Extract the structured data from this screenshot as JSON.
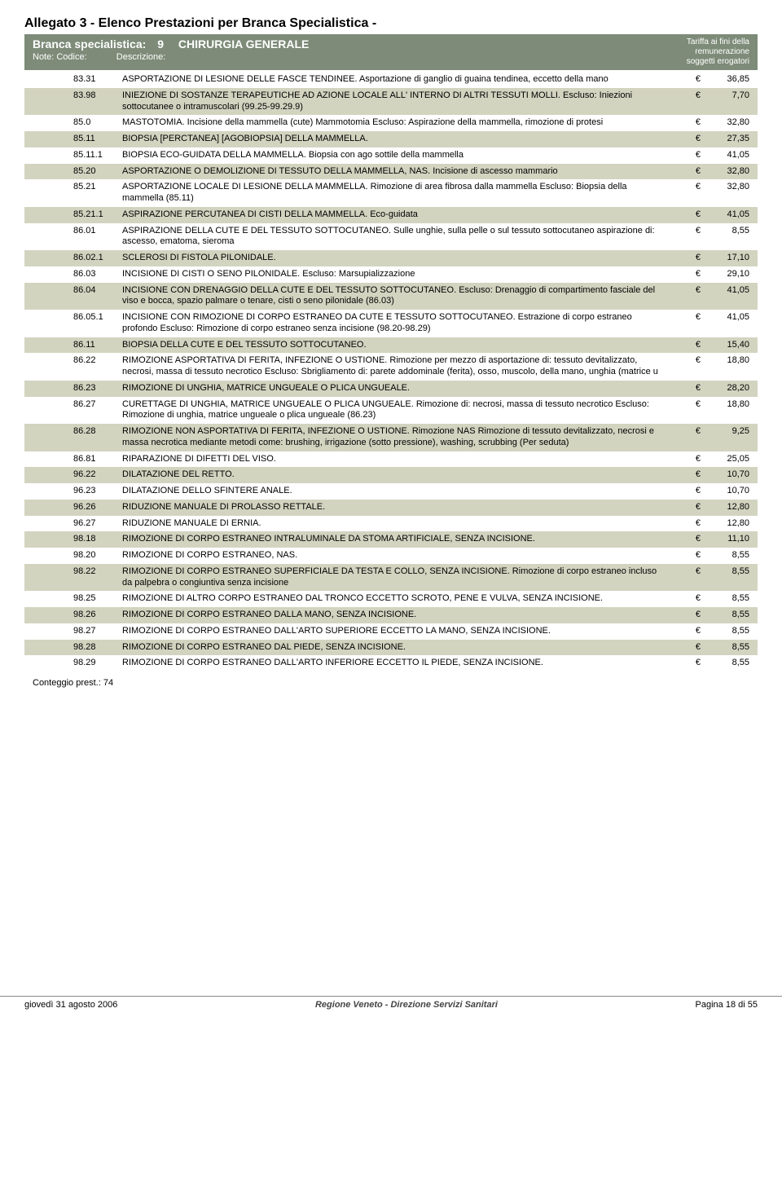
{
  "doc_title": "Allegato 3 - Elenco Prestazioni per Branca Specialistica -",
  "header": {
    "label": "Branca specialistica:",
    "num": "9",
    "name": "CHIRURGIA GENERALE",
    "note_label": "Note:",
    "codice_label": "Codice:",
    "descrizione_label": "Descrizione:",
    "tariff_l1": "Tariffa ai fini della",
    "tariff_l2": "remunerazione",
    "tariff_l3": "soggetti erogatori"
  },
  "currency": "€",
  "rows": [
    {
      "code": "83.31",
      "desc": "ASPORTAZIONE DI LESIONE DELLE FASCE TENDINEE. Asportazione di ganglio di guaina tendinea, eccetto della mano",
      "price": "36,85",
      "alt": false
    },
    {
      "code": "83.98",
      "desc": "INIEZIONE DI SOSTANZE TERAPEUTICHE AD AZIONE LOCALE ALL' INTERNO DI ALTRI TESSUTI MOLLI. Escluso: Iniezioni sottocutanee o intramuscolari (99.25-99.29.9)",
      "price": "7,70",
      "alt": true
    },
    {
      "code": "85.0",
      "desc": "MASTOTOMIA. Incisione della mammella (cute) Mammotomia Escluso: Aspirazione della mammella, rimozione di protesi",
      "price": "32,80",
      "alt": false
    },
    {
      "code": "85.11",
      "desc": "BIOPSIA [PERCTANEA] [AGOBIOPSIA] DELLA MAMMELLA.",
      "price": "27,35",
      "alt": true
    },
    {
      "code": "85.11.1",
      "desc": "BIOPSIA ECO-GUIDATA  DELLA MAMMELLA. Biopsia con ago sottile della mammella",
      "price": "41,05",
      "alt": false
    },
    {
      "code": "85.20",
      "desc": "ASPORTAZIONE O DEMOLIZIONE DI TESSUTO DELLA MAMMELLA, NAS. Incisione di ascesso mammario",
      "price": "32,80",
      "alt": true
    },
    {
      "code": "85.21",
      "desc": "ASPORTAZIONE LOCALE DI LESIONE DELLA MAMMELLA. Rimozione di area fibrosa dalla mammella  Escluso: Biopsia della mammella (85.11)",
      "price": "32,80",
      "alt": false
    },
    {
      "code": "85.21.1",
      "desc": "ASPIRAZIONE PERCUTANEA DI CISTI DELLA MAMMELLA. Eco-guidata",
      "price": "41,05",
      "alt": true
    },
    {
      "code": "86.01",
      "desc": "ASPIRAZIONE DELLA CUTE E DEL TESSUTO SOTTOCUTANEO. Sulle unghie, sulla pelle o sul tessuto sottocutaneo aspirazione di: ascesso, ematoma, sieroma",
      "price": "8,55",
      "alt": false
    },
    {
      "code": "86.02.1",
      "desc": "SCLEROSI DI FISTOLA PILONIDALE.",
      "price": "17,10",
      "alt": true
    },
    {
      "code": "86.03",
      "desc": "INCISIONE DI CISTI O SENO PILONIDALE. Escluso: Marsupializzazione",
      "price": "29,10",
      "alt": false
    },
    {
      "code": "86.04",
      "desc": "INCISIONE CON DRENAGGIO DELLA CUTE E DEL TESSUTO SOTTOCUTANEO. Escluso: Drenaggio di compartimento fasciale del viso e bocca, spazio palmare o tenare, cisti o seno pilonidale (86.03)",
      "price": "41,05",
      "alt": true
    },
    {
      "code": "86.05.1",
      "desc": "INCISIONE CON RIMOZIONE DI CORPO ESTRANEO DA CUTE E TESSUTO SOTTOCUTANEO. Estrazione di corpo estraneo profondo Escluso: Rimozione di corpo estraneo senza incisione (98.20-98.29)",
      "price": "41,05",
      "alt": false
    },
    {
      "code": "86.11",
      "desc": "BIOPSIA DELLA CUTE E DEL TESSUTO SOTTOCUTANEO.",
      "price": "15,40",
      "alt": true
    },
    {
      "code": "86.22",
      "desc": "RIMOZIONE ASPORTATIVA DI FERITA, INFEZIONE O USTIONE. Rimozione per mezzo di asportazione di: tessuto devitalizzato, necrosi,   massa di tessuto necrotico  Escluso: Sbrigliamento di: parete addominale (ferita), osso, muscolo, della mano, unghia (matrice u",
      "price": "18,80",
      "alt": false
    },
    {
      "code": "86.23",
      "desc": "RIMOZIONE DI UNGHIA, MATRICE UNGUEALE O PLICA UNGUEALE.",
      "price": "28,20",
      "alt": true
    },
    {
      "code": "86.27",
      "desc": "CURETTAGE DI UNGHIA, MATRICE UNGUEALE O PLICA UNGUEALE. Rimozione di: necrosi, massa di tessuto necrotico Escluso: Rimozione di unghia, matrice ungueale o plica ungueale (86.23)",
      "price": "18,80",
      "alt": false
    },
    {
      "code": "86.28",
      "desc": "RIMOZIONE NON ASPORTATIVA DI FERITA, INFEZIONE O USTIONE. Rimozione NAS Rimozione di tessuto devitalizzato, necrosi e massa necrotica mediante metodi come:  brushing, irrigazione (sotto pressione), washing, scrubbing (Per seduta)",
      "price": "9,25",
      "alt": true
    },
    {
      "code": "86.81",
      "desc": "RIPARAZIONE DI DIFETTI DEL VISO.",
      "price": "25,05",
      "alt": false
    },
    {
      "code": "96.22",
      "desc": "DILATAZIONE DEL RETTO.",
      "price": "10,70",
      "alt": true
    },
    {
      "code": "96.23",
      "desc": "DILATAZIONE DELLO SFINTERE ANALE.",
      "price": "10,70",
      "alt": false
    },
    {
      "code": "96.26",
      "desc": "RIDUZIONE MANUALE DI PROLASSO RETTALE.",
      "price": "12,80",
      "alt": true
    },
    {
      "code": "96.27",
      "desc": "RIDUZIONE MANUALE DI ERNIA.",
      "price": "12,80",
      "alt": false
    },
    {
      "code": "98.18",
      "desc": "RIMOZIONE DI CORPO ESTRANEO INTRALUMINALE DA STOMA ARTIFICIALE, SENZA INCISIONE.",
      "price": "11,10",
      "alt": true
    },
    {
      "code": "98.20",
      "desc": "RIMOZIONE DI CORPO ESTRANEO, NAS.",
      "price": "8,55",
      "alt": false
    },
    {
      "code": "98.22",
      "desc": "RIMOZIONE DI CORPO ESTRANEO SUPERFICIALE DA TESTA E COLLO, SENZA INCISIONE. Rimozione di corpo estraneo incluso da palpebra o congiuntiva senza incisione",
      "price": "8,55",
      "alt": true
    },
    {
      "code": "98.25",
      "desc": "RIMOZIONE DI ALTRO CORPO ESTRANEO DAL TRONCO ECCETTO SCROTO, PENE E VULVA, SENZA INCISIONE.",
      "price": "8,55",
      "alt": false
    },
    {
      "code": "98.26",
      "desc": "RIMOZIONE DI CORPO ESTRANEO DALLA MANO, SENZA INCISIONE.",
      "price": "8,55",
      "alt": true
    },
    {
      "code": "98.27",
      "desc": "RIMOZIONE DI CORPO ESTRANEO DALL'ARTO SUPERIORE ECCETTO LA MANO, SENZA INCISIONE.",
      "price": "8,55",
      "alt": false
    },
    {
      "code": "98.28",
      "desc": "RIMOZIONE DI CORPO ESTRANEO DAL PIEDE, SENZA INCISIONE.",
      "price": "8,55",
      "alt": true
    },
    {
      "code": "98.29",
      "desc": "RIMOZIONE DI CORPO ESTRANEO DALL'ARTO INFERIORE ECCETTO IL PIEDE, SENZA INCISIONE.",
      "price": "8,55",
      "alt": false
    }
  ],
  "count_label": "Conteggio prest.: 74",
  "footer": {
    "left": "giovedì 31 agosto 2006",
    "center": "Regione Veneto - Direzione  Servizi Sanitari",
    "right": "Pagina 18 di 55"
  },
  "colors": {
    "header_bg": "#7d8b78",
    "alt_bg": "#d3d4c0"
  }
}
